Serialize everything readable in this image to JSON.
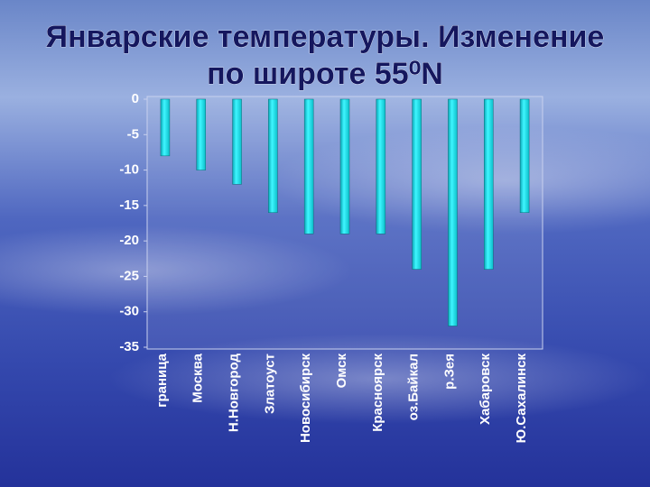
{
  "chart_data": {
    "type": "bar",
    "title": [
      "Январские температуры. Изменение",
      "по широте  55⁰N"
    ],
    "categories": [
      "граница",
      "Москва",
      "Н.Новгород",
      "Златоуст",
      "Новосибирск",
      "Омск",
      "Красноярск",
      "оз.Байкал",
      "р.Зея",
      "Хабаровск",
      "Ю.Сахалинск"
    ],
    "values": [
      -8,
      -10,
      -12,
      -16,
      -19,
      -19,
      -19,
      -24,
      -32,
      -24,
      -16
    ],
    "color": "#19e3ee",
    "ylim": [
      -35,
      0
    ],
    "yticks": [
      0,
      -5,
      -10,
      -15,
      -20,
      -25,
      -30,
      -35
    ],
    "grid": false
  }
}
